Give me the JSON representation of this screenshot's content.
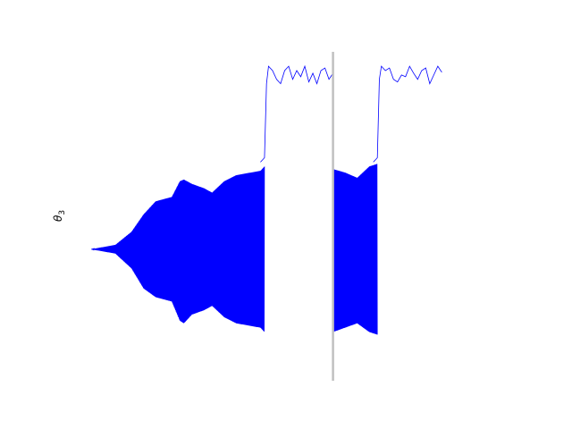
{
  "chart_data": {
    "type": "line",
    "title": "",
    "xlabel": "",
    "ylabel_symbol": "θ",
    "ylabel_subscript": "3",
    "grid": false,
    "xlim": [
      0,
      1
    ],
    "ylim": [
      -1.55,
      2.45
    ],
    "colors": {
      "series": "#0000ff",
      "marker": "#c0c0c0"
    },
    "vertical_marker_x": 0.6,
    "gap": [
      0.43,
      0.6
    ],
    "oscillation_envelope": {
      "x": [
        0.0,
        0.06,
        0.1,
        0.13,
        0.16,
        0.2,
        0.22,
        0.23,
        0.25,
        0.28,
        0.3,
        0.33,
        0.36,
        0.42,
        0.43
      ],
      "upper": [
        0.0,
        0.05,
        0.2,
        0.4,
        0.55,
        0.6,
        0.78,
        0.8,
        0.75,
        0.7,
        0.65,
        0.78,
        0.85,
        0.9,
        0.95
      ],
      "lower": [
        0.0,
        -0.05,
        -0.22,
        -0.45,
        -0.55,
        -0.6,
        -0.82,
        -0.85,
        -0.75,
        -0.7,
        -0.65,
        -0.78,
        -0.85,
        -0.9,
        -0.95
      ]
    },
    "oscillation_envelope_2": {
      "x": [
        0.6,
        0.63,
        0.66,
        0.69,
        0.71
      ],
      "upper": [
        0.92,
        0.88,
        0.82,
        0.95,
        0.98
      ],
      "lower": [
        -0.95,
        -0.9,
        -0.85,
        -0.95,
        -0.98
      ]
    },
    "upper_trace_1": {
      "x": [
        0.42,
        0.43,
        0.435,
        0.44,
        0.45,
        0.46,
        0.47,
        0.48,
        0.49,
        0.5,
        0.51,
        0.52,
        0.53,
        0.54,
        0.55,
        0.56,
        0.57,
        0.58,
        0.59,
        0.6
      ],
      "y": [
        1.0,
        1.05,
        1.9,
        2.1,
        2.05,
        1.95,
        1.9,
        2.05,
        2.1,
        1.95,
        2.05,
        1.98,
        2.1,
        1.92,
        2.02,
        1.9,
        2.05,
        2.08,
        1.95,
        2.02
      ]
    },
    "upper_trace_2": {
      "x": [
        0.7,
        0.71,
        0.715,
        0.72,
        0.73,
        0.74,
        0.75,
        0.76,
        0.77,
        0.78,
        0.79,
        0.8,
        0.81,
        0.82,
        0.83,
        0.84,
        0.85,
        0.86,
        0.87
      ],
      "y": [
        1.0,
        1.05,
        1.95,
        2.1,
        2.05,
        2.08,
        1.95,
        1.92,
        2.0,
        1.98,
        2.1,
        2.02,
        1.95,
        2.05,
        2.08,
        1.9,
        2.0,
        2.1,
        2.03
      ]
    }
  }
}
